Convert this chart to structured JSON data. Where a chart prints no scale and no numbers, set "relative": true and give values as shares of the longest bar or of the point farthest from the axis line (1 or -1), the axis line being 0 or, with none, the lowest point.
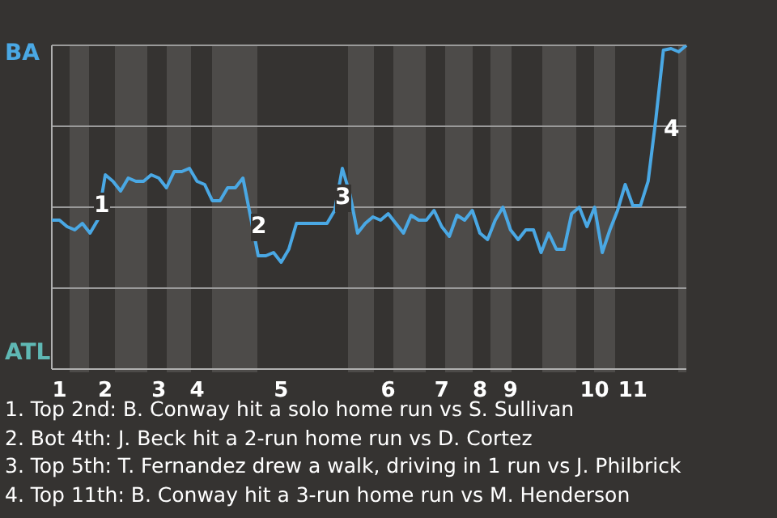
{
  "chart_data": {
    "type": "line",
    "relative": true,
    "grid": true,
    "legend": false,
    "marker": "none",
    "line_style": "solid",
    "categories": [
      null,
      "1",
      null,
      null,
      null,
      null,
      null,
      "2",
      null,
      null,
      null,
      null,
      null,
      null,
      "3",
      null,
      null,
      null,
      null,
      "4",
      null,
      null,
      null,
      null,
      null,
      null,
      null,
      null,
      null,
      null,
      "5",
      null,
      null,
      null,
      null,
      null,
      null,
      null,
      null,
      null,
      null,
      null,
      null,
      null,
      "6",
      null,
      null,
      null,
      null,
      null,
      null,
      "7",
      null,
      null,
      null,
      null,
      "8",
      null,
      null,
      null,
      "9",
      null,
      null,
      null,
      null,
      null,
      null,
      null,
      null,
      null,
      null,
      "10",
      null,
      null,
      null,
      null,
      "11",
      null,
      null,
      null,
      null,
      null,
      null,
      null
    ],
    "series": [
      {
        "color": "#4aa8e4",
        "values": [
          0.46,
          0.46,
          0.44,
          0.43,
          0.45,
          0.42,
          0.46,
          0.6,
          0.58,
          0.55,
          0.59,
          0.58,
          0.58,
          0.6,
          0.59,
          0.56,
          0.61,
          0.61,
          0.62,
          0.58,
          0.57,
          0.52,
          0.52,
          0.56,
          0.56,
          0.59,
          0.47,
          0.35,
          0.35,
          0.36,
          0.33,
          0.37,
          0.45,
          0.45,
          0.45,
          0.45,
          0.45,
          0.49,
          0.62,
          0.54,
          0.42,
          0.45,
          0.47,
          0.46,
          0.48,
          0.45,
          0.42,
          0.475,
          0.46,
          0.46,
          0.49,
          0.44,
          0.41,
          0.475,
          0.46,
          0.49,
          0.42,
          0.4,
          0.46,
          0.5,
          0.43,
          0.4,
          0.43,
          0.43,
          0.36,
          0.42,
          0.37,
          0.37,
          0.48,
          0.5,
          0.44,
          0.5,
          0.36,
          0.43,
          0.49,
          0.57,
          0.505,
          0.505,
          0.58,
          0.77,
          0.985,
          0.99,
          0.98,
          1
        ]
      }
    ],
    "annotations": [
      "BA",
      "ATL",
      "1",
      "2",
      "3",
      "4",
      "1. Top 2nd: B. Conway hit a solo home run vs S. Sullivan",
      "2. Bot 4th: J. Beck hit a 2-run home run vs D. Cortez",
      "3. Top 5th: T. Fernandez drew a walk, driving in 1 run vs J. Philbrick",
      "4. Top 11th: B. Conway hit a 3-run home run vs M. Henderson"
    ]
  }
}
